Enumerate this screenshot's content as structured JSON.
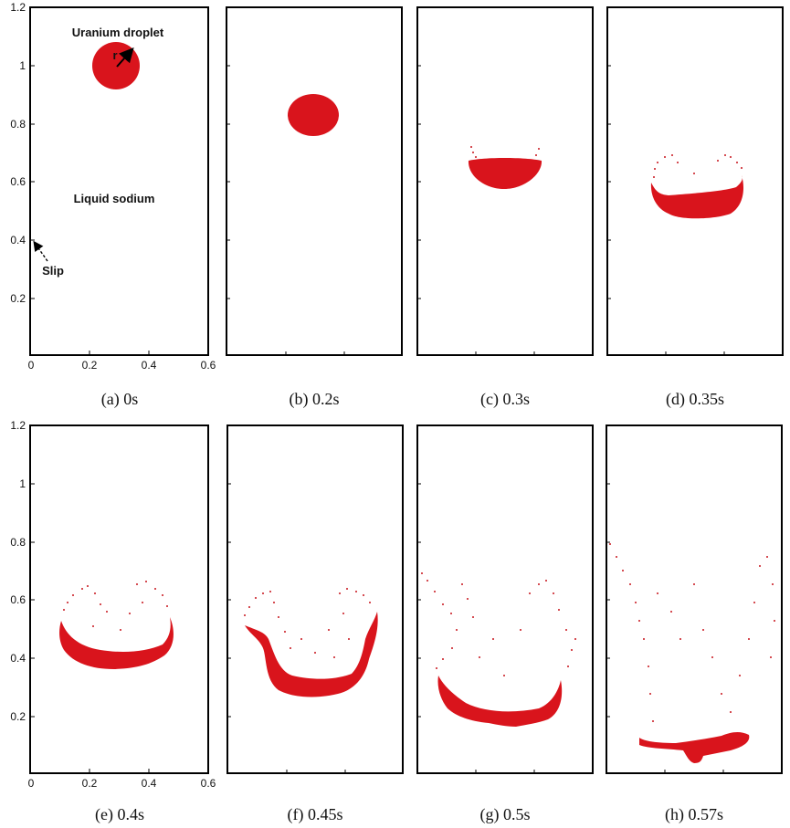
{
  "figure": {
    "panels": [
      {
        "caption": "(a) 0s"
      },
      {
        "caption": "(b) 0.2s"
      },
      {
        "caption": "(c) 0.3s"
      },
      {
        "caption": "(d) 0.35s"
      },
      {
        "caption": "(e) 0.4s"
      },
      {
        "caption": "(f) 0.45s"
      },
      {
        "caption": "(g) 0.5s"
      },
      {
        "caption": "(h) 0.57s"
      }
    ],
    "y_ticks": [
      "0.2",
      "0.4",
      "0.6",
      "0.8",
      "1",
      "1.2"
    ],
    "x_ticks": [
      "0",
      "0.2",
      "0.4",
      "0.6"
    ],
    "annotations": {
      "droplet": "Uranium droplet",
      "radius": "r",
      "fluid": "Liquid sodium",
      "boundary": "Slip"
    },
    "colors": {
      "droplet": "#d9141c",
      "frame": "#000000"
    }
  }
}
